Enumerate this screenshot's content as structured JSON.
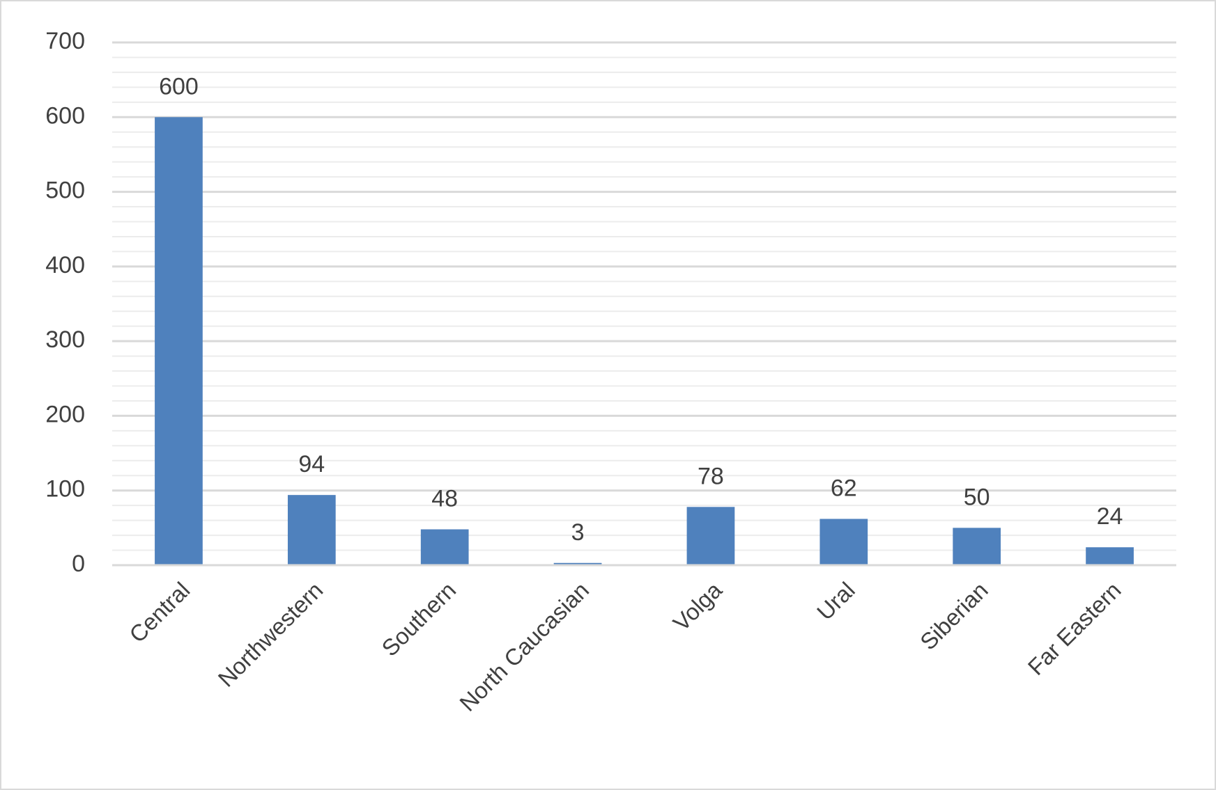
{
  "chart_data": {
    "type": "bar",
    "categories": [
      "Central",
      "Northwestern",
      "Southern",
      "North Caucasian",
      "Volga",
      "Ural",
      "Siberian",
      "Far Eastern"
    ],
    "values": [
      600,
      94,
      48,
      3,
      78,
      62,
      50,
      24
    ],
    "color": "#4f81bd",
    "ylim": [
      0,
      700
    ],
    "yticks": [
      0,
      100,
      200,
      300,
      400,
      500,
      600,
      700
    ],
    "grid": true,
    "minor_grid": true,
    "data_labels": true
  }
}
